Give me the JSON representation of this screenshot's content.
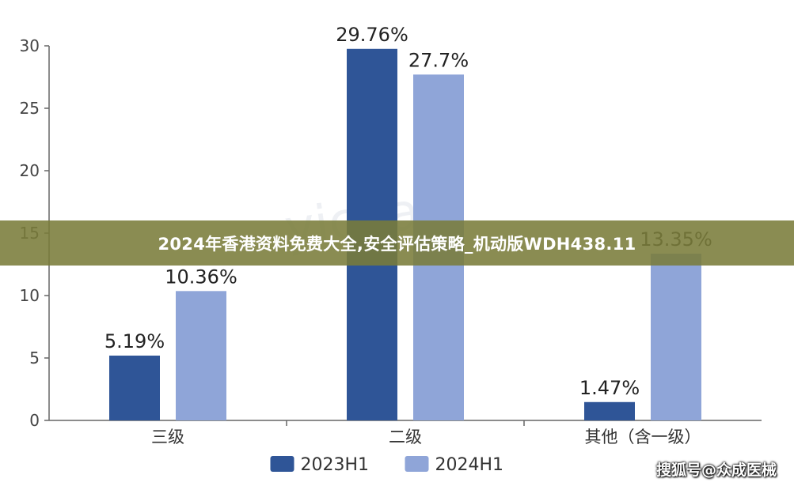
{
  "chart_data": {
    "type": "bar",
    "categories": [
      "三级",
      "二级",
      "其他（含一级）"
    ],
    "series": [
      {
        "name": "2023H1",
        "values": [
          5.19,
          29.76,
          1.47
        ],
        "labels": [
          "5.19%",
          "29.76%",
          "1.47%"
        ],
        "color": "#2f5597"
      },
      {
        "name": "2024H1",
        "values": [
          10.36,
          27.7,
          13.35
        ],
        "labels": [
          "10.36%",
          "27.7%",
          "13.35%"
        ],
        "color": "#8fa5d8"
      }
    ],
    "yticks": [
      "0",
      "5",
      "10",
      "15",
      "20",
      "25",
      "30"
    ],
    "ylim": [
      0,
      30
    ],
    "grid": false,
    "legend": "bottom-center"
  },
  "banner": {
    "title": "2024年香港资料免费大全,安全评估策略_机动版WDH438.11"
  },
  "credit": "搜狐号@众成医械",
  "watermark": "yichain"
}
